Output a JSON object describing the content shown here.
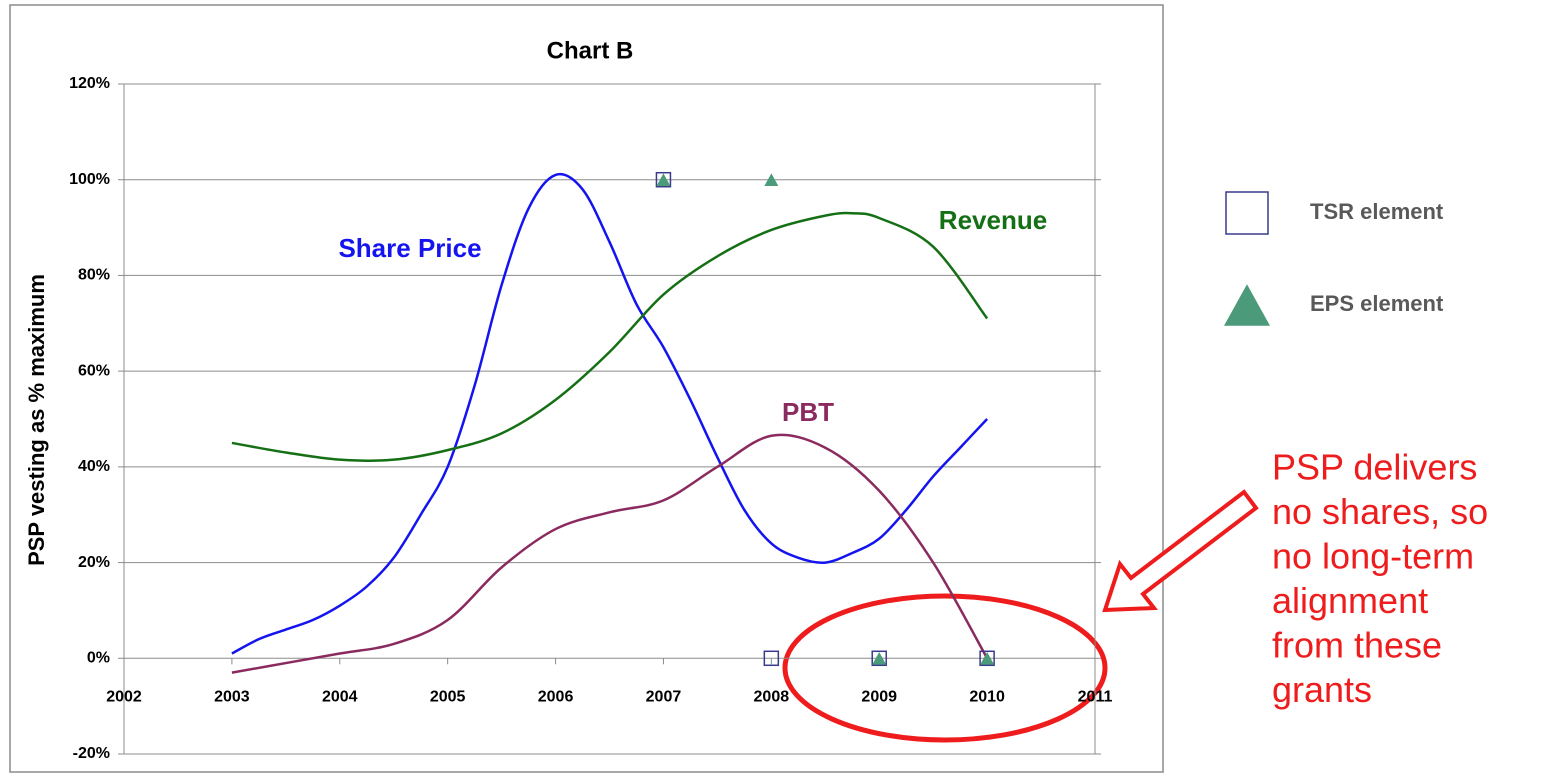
{
  "chart_data": {
    "type": "line",
    "title": "Chart B",
    "y_label": "PSP vesting as % maximum",
    "xlim": [
      2002,
      2011
    ],
    "xticks": [
      2002,
      2003,
      2004,
      2005,
      2006,
      2007,
      2008,
      2009,
      2010,
      2011
    ],
    "ylim": [
      -20,
      120
    ],
    "yticks": [
      {
        "value": -20,
        "label": "-20%"
      },
      {
        "value": 0,
        "label": "0%"
      },
      {
        "value": 20,
        "label": "20%"
      },
      {
        "value": 40,
        "label": "40%"
      },
      {
        "value": 60,
        "label": "60%"
      },
      {
        "value": 80,
        "label": "80%"
      },
      {
        "value": 100,
        "label": "100%"
      },
      {
        "value": 120,
        "label": "120%"
      }
    ],
    "grid": true,
    "legend": "right",
    "series": [
      {
        "name": "Share Price",
        "color": "#1414f0",
        "x": [
          2003,
          2003.25,
          2003.5,
          2003.75,
          2004,
          2004.25,
          2004.5,
          2004.75,
          2005,
          2005.25,
          2005.5,
          2005.75,
          2006,
          2006.25,
          2006.5,
          2006.75,
          2007,
          2007.25,
          2007.5,
          2007.75,
          2008,
          2008.25,
          2008.5,
          2008.75,
          2009,
          2009.25,
          2009.5,
          2009.75,
          2010
        ],
        "values": [
          1,
          4,
          6,
          8,
          11,
          15,
          21,
          30,
          40,
          57,
          78,
          94,
          101,
          98,
          87,
          74,
          65,
          54,
          42,
          31,
          24,
          21,
          20,
          22,
          25,
          31,
          38,
          44,
          50
        ]
      },
      {
        "name": "Revenue",
        "color": "#157015",
        "x": [
          2003,
          2003.5,
          2004,
          2004.5,
          2005,
          2005.5,
          2006,
          2006.5,
          2007,
          2007.5,
          2008,
          2008.5,
          2008.75,
          2009,
          2009.5,
          2010
        ],
        "values": [
          45,
          43,
          41.5,
          41.5,
          43.5,
          47,
          54,
          64,
          76,
          84,
          89.5,
          92.5,
          93,
          92,
          86,
          71
        ]
      },
      {
        "name": "PBT",
        "color": "#8b2a5e",
        "x": [
          2003,
          2003.5,
          2004,
          2004.5,
          2005,
          2005.5,
          2006,
          2006.5,
          2007,
          2007.5,
          2008,
          2008.5,
          2009,
          2009.5,
          2010
        ],
        "values": [
          -3,
          -1,
          1,
          3,
          8,
          19,
          27,
          30.5,
          33,
          40,
          46.5,
          44,
          35,
          20,
          0
        ]
      },
      {
        "name": "TSR element",
        "color": "#3a3a8c",
        "marker": "square",
        "x": [
          2007,
          2008,
          2009,
          2010
        ],
        "values": [
          100,
          0,
          0,
          0
        ]
      },
      {
        "name": "EPS element",
        "color": "#4b9b7b",
        "marker": "triangle",
        "x": [
          2007,
          2008,
          2009,
          2010
        ],
        "values": [
          100,
          100,
          0,
          0
        ]
      }
    ],
    "annotation": [
      "PSP delivers",
      "no shares, so",
      "no long-term",
      "alignment",
      "from these",
      "grants"
    ]
  }
}
